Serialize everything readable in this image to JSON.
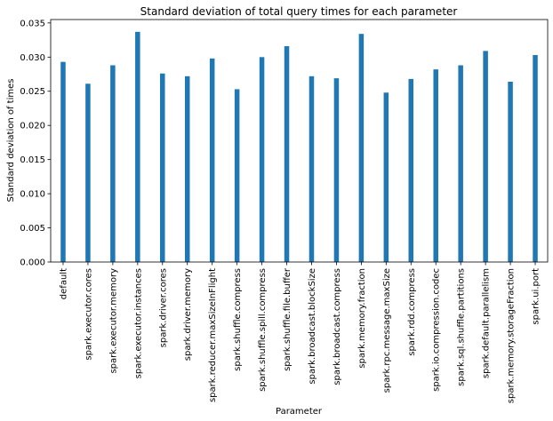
{
  "chart_data": {
    "type": "bar",
    "title": "Standard deviation of total query times for each parameter",
    "xlabel": "Parameter",
    "ylabel": "Standard deviation of times",
    "ylim": [
      0,
      0.0355
    ],
    "yticks": [
      "0.000",
      "0.005",
      "0.010",
      "0.015",
      "0.020",
      "0.025",
      "0.030",
      "0.035"
    ],
    "ytick_values": [
      0,
      0.005,
      0.01,
      0.015,
      0.02,
      0.025,
      0.03,
      0.035
    ],
    "bar_color": "#1f77b4",
    "categories": [
      "default",
      "spark.executor.cores",
      "spark.executor.memory",
      "spark.executor.instances",
      "spark.driver.cores",
      "spark.driver.memory",
      "spark.reducer.maxSizeInFlight",
      "spark.shuffle.compress",
      "spark.shuffle.spill.compress",
      "spark.shuffle.file.buffer",
      "spark.broadcast.blockSize",
      "spark.broadcast.compress",
      "spark.memory.fraction",
      "spark.rpc.message.maxSize",
      "spark.rdd.compress",
      "spark.io.compression.codec",
      "spark.sql.shuffle.partitions",
      "spark.default.parallelism",
      "spark.memory.storageFraction",
      "spark.ui.port"
    ],
    "values": [
      0.0293,
      0.0261,
      0.0288,
      0.0337,
      0.0276,
      0.0272,
      0.0298,
      0.0253,
      0.03,
      0.0316,
      0.0272,
      0.0269,
      0.0334,
      0.0248,
      0.0268,
      0.0282,
      0.0288,
      0.0309,
      0.0264,
      0.0303
    ]
  }
}
